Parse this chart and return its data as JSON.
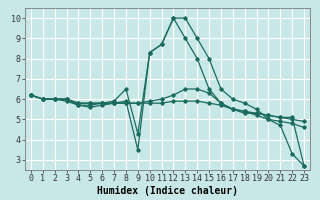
{
  "xlabel": "Humidex (Indice chaleur)",
  "ylabel": "",
  "background_color": "#c8e8e8",
  "grid_color": "#ffffff",
  "line_color": "#1a6b5e",
  "xlim": [
    -0.5,
    23.5
  ],
  "ylim": [
    2.5,
    10.5
  ],
  "xticks": [
    0,
    1,
    2,
    3,
    4,
    5,
    6,
    7,
    8,
    9,
    10,
    11,
    12,
    13,
    14,
    15,
    16,
    17,
    18,
    19,
    20,
    21,
    22,
    23
  ],
  "yticks": [
    3,
    4,
    5,
    6,
    7,
    8,
    9,
    10
  ],
  "series": [
    [
      6.2,
      6.0,
      6.0,
      6.0,
      5.7,
      5.6,
      5.7,
      5.8,
      5.9,
      3.5,
      8.3,
      8.7,
      10.0,
      10.0,
      9.0,
      8.0,
      6.5,
      6.0,
      5.8,
      5.5,
      5.0,
      4.7,
      3.3,
      2.7
    ],
    [
      6.2,
      6.0,
      6.0,
      6.0,
      5.8,
      5.8,
      5.8,
      5.8,
      5.8,
      5.8,
      5.9,
      6.0,
      6.2,
      6.5,
      6.5,
      6.3,
      5.8,
      5.5,
      5.4,
      5.3,
      5.2,
      5.1,
      5.0,
      4.9
    ],
    [
      6.2,
      6.0,
      6.0,
      6.0,
      5.8,
      5.8,
      5.8,
      5.8,
      5.8,
      5.8,
      5.8,
      5.8,
      5.9,
      5.9,
      5.9,
      5.8,
      5.7,
      5.5,
      5.4,
      5.2,
      5.0,
      4.9,
      4.8,
      4.6
    ],
    [
      6.2,
      6.0,
      6.0,
      5.9,
      5.7,
      5.7,
      5.8,
      5.9,
      6.5,
      4.3,
      8.3,
      8.7,
      10.0,
      9.0,
      8.0,
      6.5,
      5.8,
      5.5,
      5.3,
      5.3,
      5.2,
      5.1,
      5.1,
      2.7
    ]
  ],
  "figsize": [
    3.2,
    2.0
  ],
  "dpi": 100,
  "tick_fontsize": 6.0,
  "xlabel_fontsize": 7.0
}
